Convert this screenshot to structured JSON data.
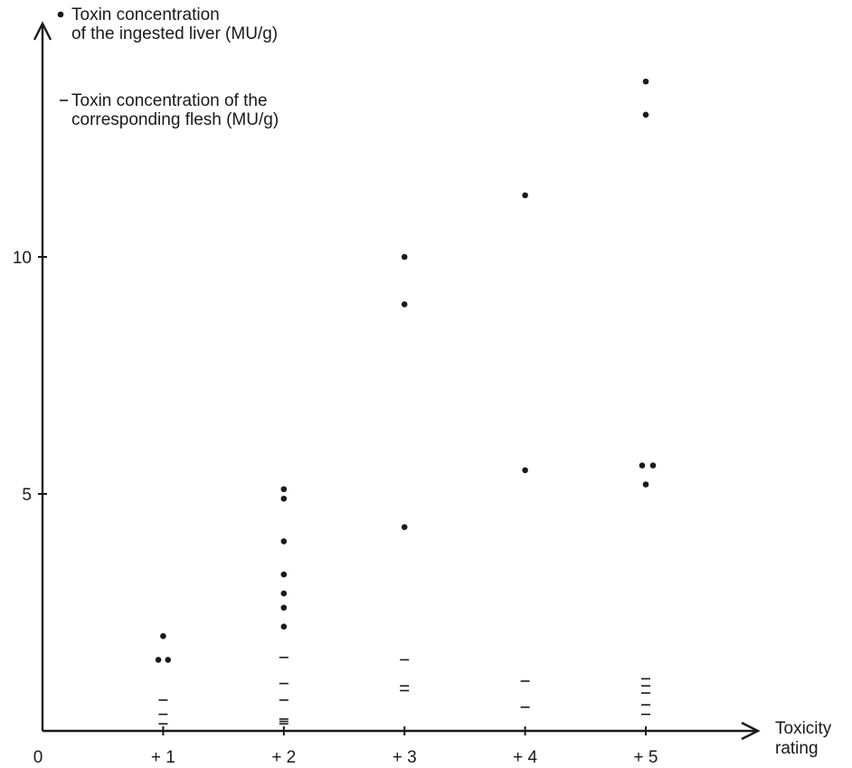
{
  "chart_data": {
    "type": "scatter",
    "x_axis": {
      "ticks": [
        {
          "value": 0,
          "label": "0"
        },
        {
          "value": 1,
          "label": "+ 1"
        },
        {
          "value": 2,
          "label": "+ 2"
        },
        {
          "value": 3,
          "label": "+ 3"
        },
        {
          "value": 4,
          "label": "+ 4"
        },
        {
          "value": 5,
          "label": "+ 5"
        }
      ],
      "title_lines": [
        "Toxicity",
        "rating"
      ],
      "range": [
        0,
        6
      ]
    },
    "y_axis": {
      "ticks": [
        {
          "value": 5,
          "label": "5"
        },
        {
          "value": 10,
          "label": "10"
        }
      ],
      "range": [
        0,
        15
      ]
    },
    "legend": {
      "placement": "top-left",
      "entries": [
        {
          "marker": "dot",
          "lines": [
            "Toxin concentration",
            "of the ingested liver (MU/g)"
          ]
        },
        {
          "marker": "dash",
          "lines": [
            "Toxin concentration of the",
            "corresponding flesh (MU/g)"
          ]
        }
      ]
    },
    "series": [
      {
        "marker": "dot",
        "points": [
          {
            "x": 1,
            "y": 2.0
          },
          {
            "x": 0.96,
            "y": 1.5
          },
          {
            "x": 1.04,
            "y": 1.5
          },
          {
            "x": 2,
            "y": 5.1
          },
          {
            "x": 2,
            "y": 4.9
          },
          {
            "x": 2,
            "y": 4.0
          },
          {
            "x": 2,
            "y": 3.3
          },
          {
            "x": 2,
            "y": 2.9
          },
          {
            "x": 2,
            "y": 2.6
          },
          {
            "x": 2,
            "y": 2.2
          },
          {
            "x": 3,
            "y": 10.0
          },
          {
            "x": 3,
            "y": 9.0
          },
          {
            "x": 3,
            "y": 4.3
          },
          {
            "x": 4,
            "y": 11.3
          },
          {
            "x": 4,
            "y": 5.5
          },
          {
            "x": 5,
            "y": 13.7
          },
          {
            "x": 5,
            "y": 13.0
          },
          {
            "x": 4.97,
            "y": 5.6
          },
          {
            "x": 5.06,
            "y": 5.6
          },
          {
            "x": 5,
            "y": 5.2
          }
        ]
      },
      {
        "marker": "dash",
        "points": [
          {
            "x": 1,
            "y": 0.65
          },
          {
            "x": 1,
            "y": 0.35
          },
          {
            "x": 1,
            "y": 0.15
          },
          {
            "x": 2,
            "y": 1.55
          },
          {
            "x": 2,
            "y": 1.0
          },
          {
            "x": 2,
            "y": 0.65
          },
          {
            "x": 2,
            "y": 0.25
          },
          {
            "x": 2,
            "y": 0.2
          },
          {
            "x": 2,
            "y": 0.15
          },
          {
            "x": 3,
            "y": 1.5
          },
          {
            "x": 3,
            "y": 0.95
          },
          {
            "x": 3,
            "y": 0.85
          },
          {
            "x": 4,
            "y": 1.05
          },
          {
            "x": 4,
            "y": 0.5
          },
          {
            "x": 5,
            "y": 1.1
          },
          {
            "x": 5,
            "y": 0.95
          },
          {
            "x": 5,
            "y": 0.8
          },
          {
            "x": 5,
            "y": 0.55
          },
          {
            "x": 5,
            "y": 0.35
          }
        ]
      }
    ]
  }
}
